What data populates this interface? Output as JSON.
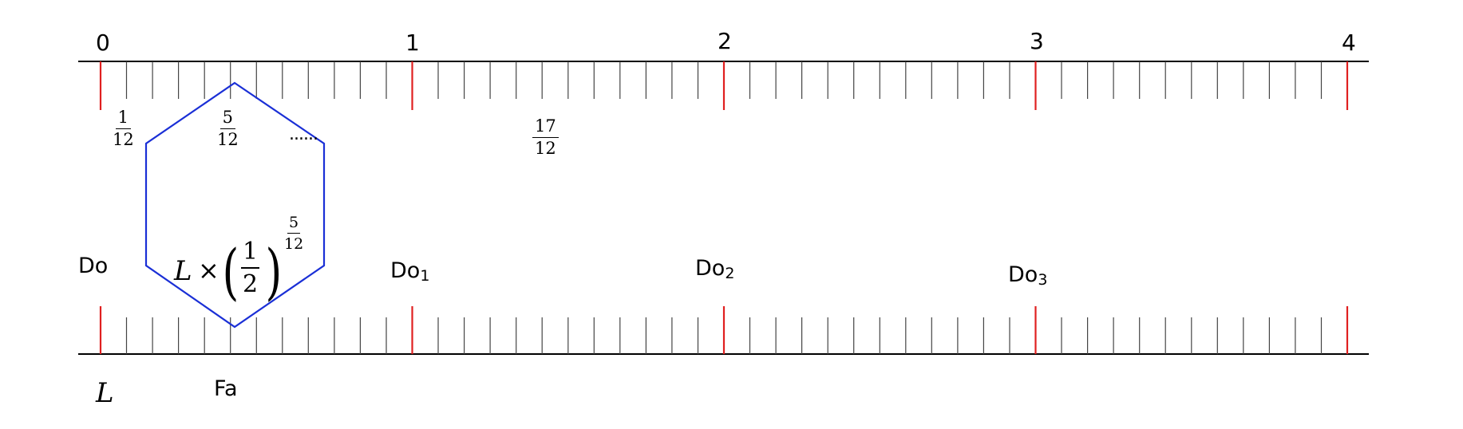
{
  "scale_labels": [
    "0",
    "1",
    "2",
    "3",
    "4"
  ],
  "fractions": {
    "one_twelfth": {
      "numerator": "1",
      "denominator": "12"
    },
    "five_twelfths": {
      "numerator": "5",
      "denominator": "12"
    },
    "seventeen_twelfths": {
      "numerator": "17",
      "denominator": "12"
    }
  },
  "ellipsis": "......",
  "formula": {
    "base": "L",
    "times": "×",
    "paren_open": "(",
    "paren_close": ")",
    "half_numerator": "1",
    "half_denominator": "2",
    "exp_numerator": "5",
    "exp_denominator": "12"
  },
  "note_labels": {
    "do": "Do",
    "do1_base": "Do",
    "do1_sub": "1",
    "do2_base": "Do",
    "do2_sub": "2",
    "do3_base": "Do",
    "do3_sub": "3",
    "fa": "Fa"
  },
  "base_length_label": "L",
  "colors": {
    "axis": "#000000",
    "minor_tick": "#444444",
    "major_tick": "#e02020",
    "hexagon": "#1a2fd6"
  }
}
